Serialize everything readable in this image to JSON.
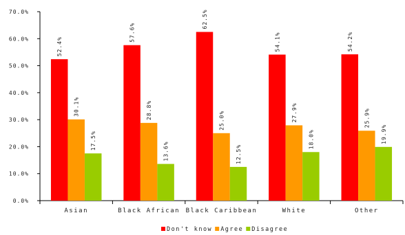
{
  "chart_data": {
    "type": "bar",
    "title": "",
    "xlabel": "",
    "ylabel": "",
    "categories": [
      "Asian",
      "Black African",
      "Black Caribbean",
      "White",
      "Other"
    ],
    "series": [
      {
        "name": "Don't know",
        "color": "#ff0000",
        "values": [
          52.4,
          57.6,
          62.5,
          54.1,
          54.2
        ],
        "labels": [
          "52.4%",
          "57.6%",
          "62.5%",
          "54.1%",
          "54.2%"
        ]
      },
      {
        "name": "Agree",
        "color": "#ff9900",
        "values": [
          30.1,
          28.8,
          25.0,
          27.9,
          25.9
        ],
        "labels": [
          "30.1%",
          "28.8%",
          "25.0%",
          "27.9%",
          "25.9%"
        ]
      },
      {
        "name": "Disagree",
        "color": "#99cc00",
        "values": [
          17.5,
          13.6,
          12.5,
          18.0,
          19.9
        ],
        "labels": [
          "17.5%",
          "13.6%",
          "12.5%",
          "18.0%",
          "19.9%"
        ]
      }
    ],
    "ylim": [
      0,
      70
    ],
    "yticks": [
      "0.0%",
      "10.0%",
      "20.0%",
      "30.0%",
      "40.0%",
      "50.0%",
      "60.0%",
      "70.0%"
    ],
    "ytick_values": [
      0,
      10,
      20,
      30,
      40,
      50,
      60,
      70
    ],
    "grid": false,
    "legend_position": "bottom"
  }
}
